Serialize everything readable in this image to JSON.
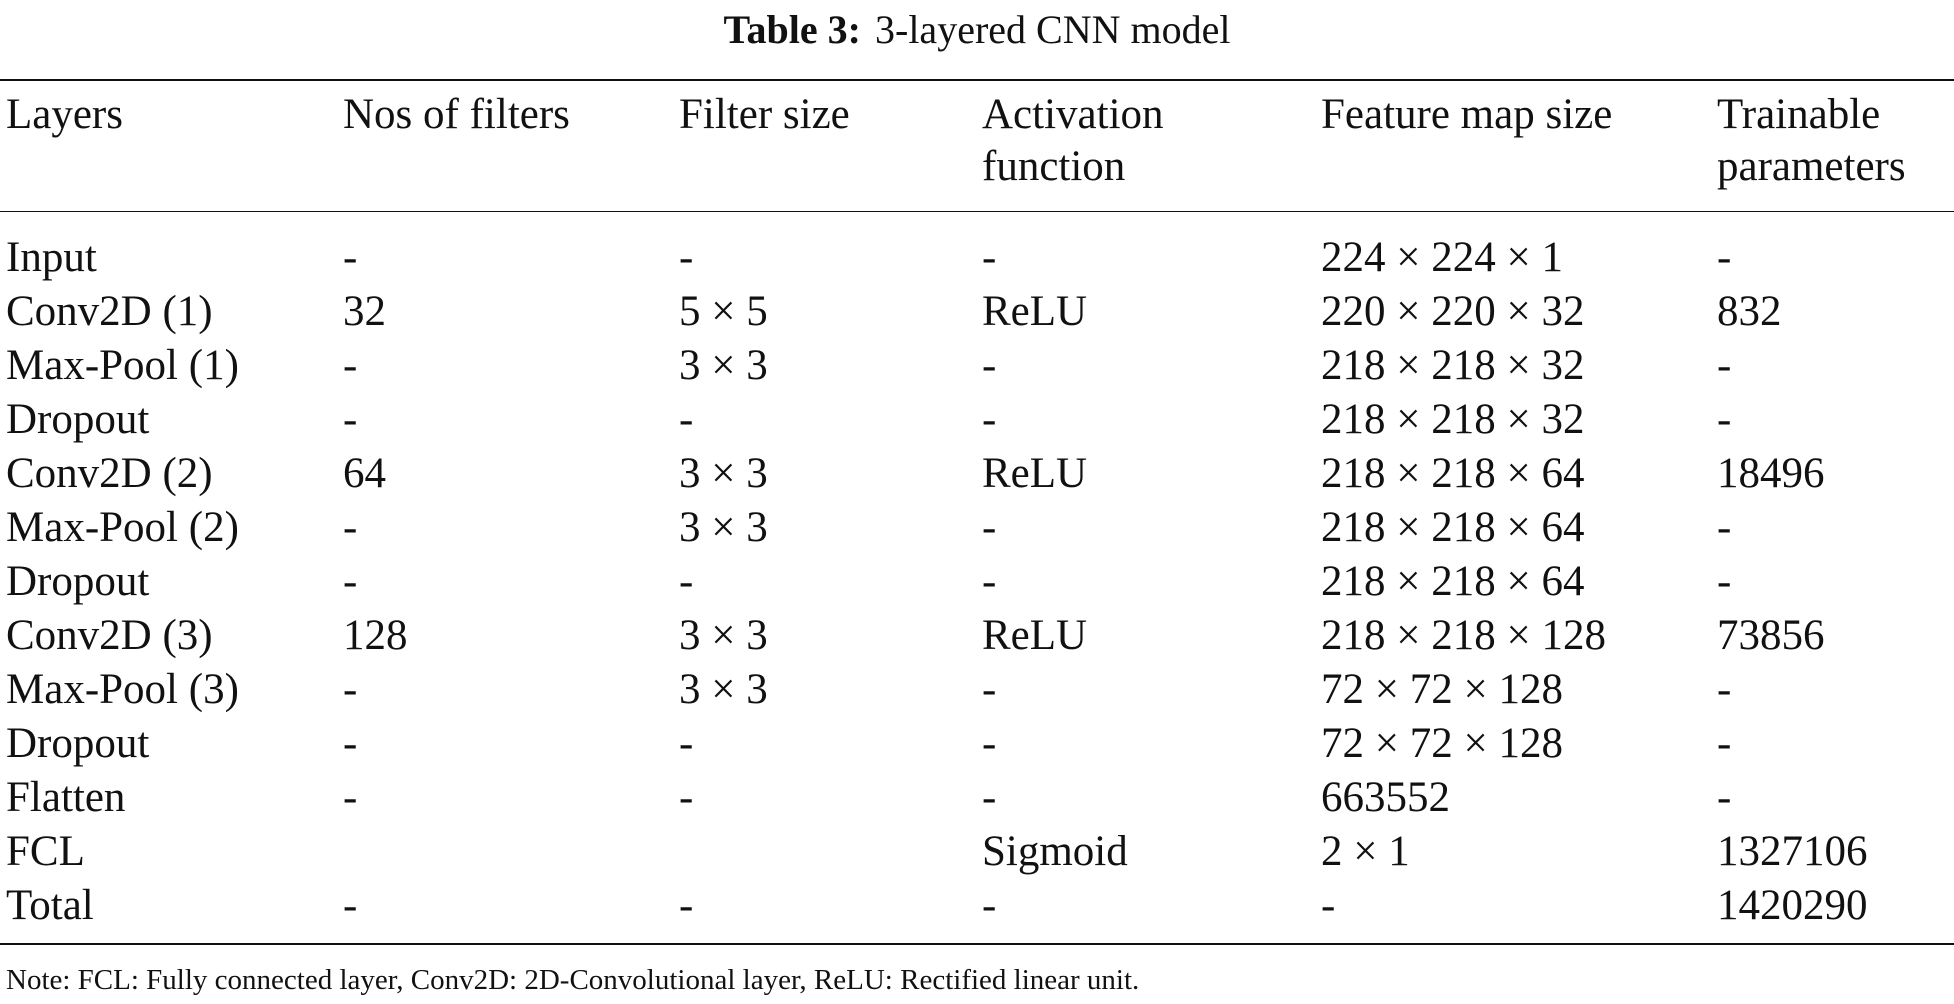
{
  "caption": {
    "label": "Table 3:",
    "text": "3-layered CNN model"
  },
  "table": {
    "header": [
      [
        "Layers"
      ],
      [
        "Nos of filters"
      ],
      [
        "Filter size"
      ],
      [
        "Activation",
        "function"
      ],
      [
        "Feature map size"
      ],
      [
        "Trainable",
        "parameters"
      ]
    ],
    "rows": [
      [
        "Input",
        "-",
        "-",
        "-",
        "224 × 224 × 1",
        "-"
      ],
      [
        "Conv2D (1)",
        "32",
        "5 × 5",
        "ReLU",
        "220 × 220 × 32",
        "832"
      ],
      [
        "Max-Pool (1)",
        "-",
        "3 × 3",
        "-",
        "218 × 218 × 32",
        "-"
      ],
      [
        "Dropout",
        "-",
        "-",
        "-",
        "218 × 218 × 32",
        "-"
      ],
      [
        "Conv2D (2)",
        "64",
        "3 × 3",
        "ReLU",
        "218 × 218 × 64",
        "18496"
      ],
      [
        "Max-Pool (2)",
        "-",
        "3 × 3",
        "-",
        "218 × 218 × 64",
        "-"
      ],
      [
        "Dropout",
        "-",
        "-",
        "-",
        "218 × 218 × 64",
        "-"
      ],
      [
        "Conv2D (3)",
        "128",
        "3 × 3",
        "ReLU",
        "218 × 218 × 128",
        "73856"
      ],
      [
        "Max-Pool (3)",
        "-",
        "3 × 3",
        "-",
        "72 × 72 × 128",
        "-"
      ],
      [
        "Dropout",
        "-",
        "-",
        "-",
        "72 × 72 × 128",
        "-"
      ],
      [
        "Flatten",
        "-",
        "-",
        "-",
        "663552",
        "-"
      ],
      [
        "FCL",
        null,
        null,
        "Sigmoid",
        "2 × 1",
        "1327106"
      ],
      [
        "Total",
        "-",
        "-",
        "-",
        "-",
        "1420290"
      ]
    ]
  },
  "note": "Note: FCL: Fully connected layer, Conv2D: 2D-Convolutional layer, ReLU: Rectified linear unit."
}
